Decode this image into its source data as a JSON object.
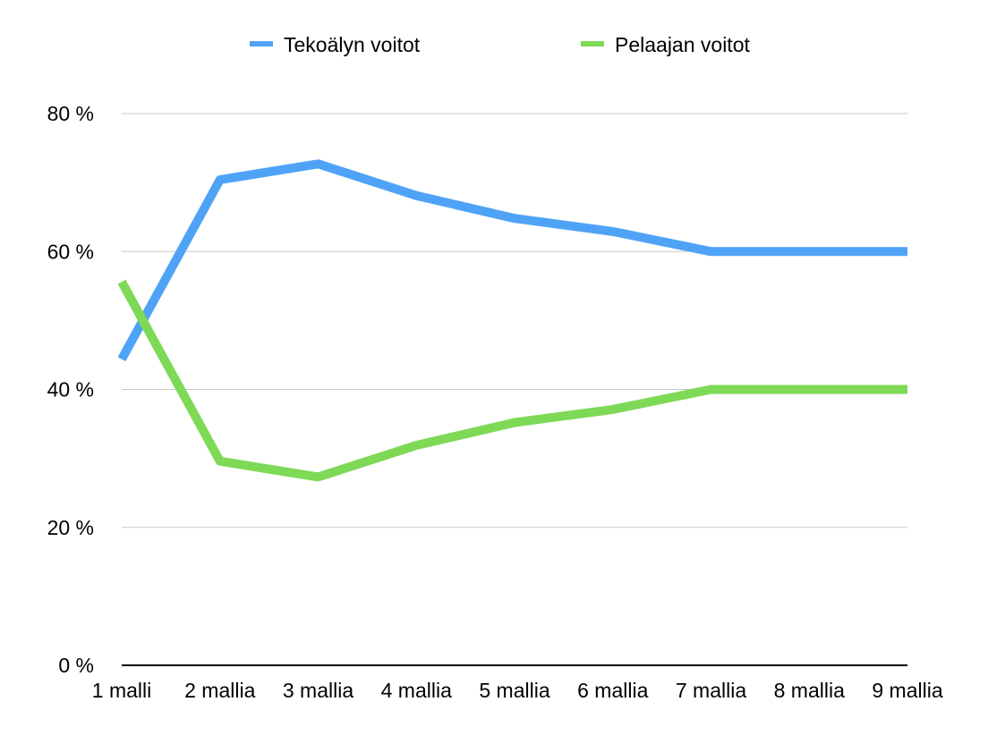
{
  "chart_data": {
    "type": "line",
    "categories": [
      "1 malli",
      "2 mallia",
      "3 mallia",
      "4 mallia",
      "5 mallia",
      "6 mallia",
      "7 mallia",
      "8 mallia",
      "9 mallia"
    ],
    "series": [
      {
        "name": "Tekoälyn voitot",
        "color": "#4fa3f7",
        "values": [
          44.4,
          70.4,
          72.7,
          68.1,
          64.8,
          62.9,
          60,
          60,
          60
        ]
      },
      {
        "name": "Pelaajan voitot",
        "color": "#7ed957",
        "values": [
          55.6,
          29.6,
          27.3,
          31.9,
          35.2,
          37.1,
          40,
          40,
          40
        ]
      }
    ],
    "ylim": [
      0,
      80
    ],
    "yticks": [
      0,
      20,
      40,
      60,
      80
    ],
    "ytick_labels": [
      "0 %",
      "20 %",
      "40 %",
      "60 %",
      "80 %"
    ],
    "grid": true,
    "legend_position": "top-center"
  }
}
